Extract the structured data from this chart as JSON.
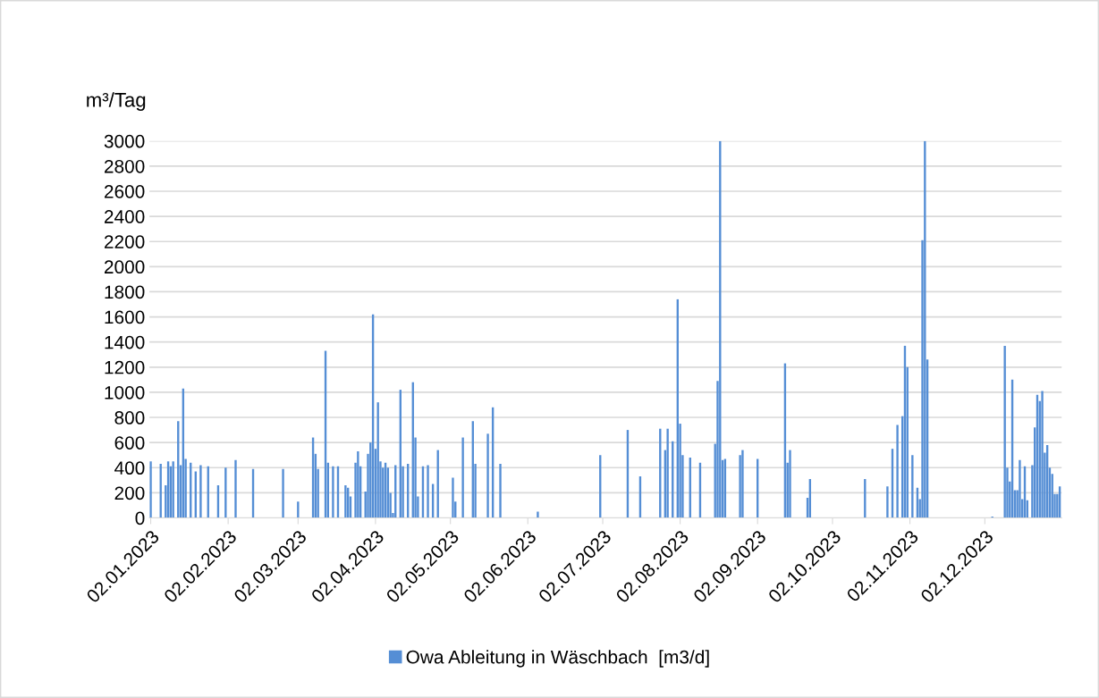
{
  "chart_data": {
    "type": "bar",
    "ylabel": "m³/Tag",
    "x": [
      "2023-01-02",
      "2023-01-06",
      "2023-01-08",
      "2023-01-09",
      "2023-01-10",
      "2023-01-11",
      "2023-01-13",
      "2023-01-14",
      "2023-01-15",
      "2023-01-16",
      "2023-01-18",
      "2023-01-20",
      "2023-01-22",
      "2023-01-25",
      "2023-01-29",
      "2023-02-01",
      "2023-02-05",
      "2023-02-12",
      "2023-02-24",
      "2023-03-02",
      "2023-03-08",
      "2023-03-09",
      "2023-03-10",
      "2023-03-13",
      "2023-03-14",
      "2023-03-16",
      "2023-03-18",
      "2023-03-21",
      "2023-03-22",
      "2023-03-23",
      "2023-03-25",
      "2023-03-26",
      "2023-03-27",
      "2023-03-29",
      "2023-03-30",
      "2023-03-31",
      "2023-04-01",
      "2023-04-02",
      "2023-04-03",
      "2023-04-04",
      "2023-04-05",
      "2023-04-06",
      "2023-04-07",
      "2023-04-08",
      "2023-04-09",
      "2023-04-10",
      "2023-04-12",
      "2023-04-13",
      "2023-04-15",
      "2023-04-17",
      "2023-04-18",
      "2023-04-19",
      "2023-04-21",
      "2023-04-23",
      "2023-04-25",
      "2023-04-27",
      "2023-05-03",
      "2023-05-04",
      "2023-05-07",
      "2023-05-11",
      "2023-05-12",
      "2023-05-17",
      "2023-05-19",
      "2023-05-22",
      "2023-06-06",
      "2023-07-01",
      "2023-07-12",
      "2023-07-17",
      "2023-07-25",
      "2023-07-27",
      "2023-07-28",
      "2023-07-30",
      "2023-08-01",
      "2023-08-02",
      "2023-08-03",
      "2023-08-06",
      "2023-08-10",
      "2023-08-16",
      "2023-08-17",
      "2023-08-18",
      "2023-08-19",
      "2023-08-20",
      "2023-08-26",
      "2023-08-27",
      "2023-09-02",
      "2023-09-13",
      "2023-09-14",
      "2023-09-15",
      "2023-09-22",
      "2023-09-23",
      "2023-10-15",
      "2023-10-24",
      "2023-10-26",
      "2023-10-28",
      "2023-10-30",
      "2023-10-31",
      "2023-11-01",
      "2023-11-03",
      "2023-11-05",
      "2023-11-06",
      "2023-11-07",
      "2023-11-08",
      "2023-11-09",
      "2023-12-05",
      "2023-12-10",
      "2023-12-11",
      "2023-12-12",
      "2023-12-13",
      "2023-12-14",
      "2023-12-15",
      "2023-12-16",
      "2023-12-17",
      "2023-12-18",
      "2023-12-19",
      "2023-12-21",
      "2023-12-22",
      "2023-12-23",
      "2023-12-24",
      "2023-12-25",
      "2023-12-26",
      "2023-12-27",
      "2023-12-28",
      "2023-12-29",
      "2023-12-30",
      "2023-12-31",
      "2024-01-01"
    ],
    "series": [
      {
        "name": "Owa Ableitung in Wäschbach  [m3/d]",
        "color": "#558ed5",
        "values": [
          450,
          430,
          260,
          450,
          410,
          450,
          770,
          420,
          1030,
          470,
          440,
          370,
          420,
          410,
          260,
          400,
          460,
          390,
          390,
          130,
          640,
          510,
          390,
          1330,
          440,
          410,
          410,
          260,
          240,
          170,
          440,
          530,
          410,
          210,
          510,
          600,
          1620,
          550,
          920,
          450,
          400,
          440,
          400,
          200,
          40,
          420,
          1020,
          410,
          430,
          1080,
          640,
          170,
          410,
          420,
          270,
          540,
          320,
          130,
          640,
          770,
          430,
          670,
          880,
          430,
          50,
          500,
          700,
          330,
          710,
          540,
          710,
          610,
          1740,
          750,
          500,
          480,
          440,
          590,
          1090,
          3000,
          460,
          470,
          500,
          540,
          470,
          1230,
          440,
          540,
          160,
          310,
          310,
          250,
          550,
          740,
          810,
          1370,
          1200,
          500,
          240,
          150,
          2210,
          3000,
          1260,
          10,
          1370,
          400,
          290,
          1100,
          220,
          220,
          460,
          150,
          410,
          140,
          420,
          720,
          980,
          930,
          1010,
          520,
          580,
          400,
          350,
          190,
          190,
          250
        ]
      }
    ],
    "xlim": [
      "2023-01-01T12:00",
      "2024-01-01T18:00"
    ],
    "xticks": [
      {
        "value": "2023-01-02",
        "label": "02.01.2023"
      },
      {
        "value": "2023-02-02",
        "label": "02.02.2023"
      },
      {
        "value": "2023-03-02",
        "label": "02.03.2023"
      },
      {
        "value": "2023-04-02",
        "label": "02.04.2023"
      },
      {
        "value": "2023-05-02",
        "label": "02.05.2023"
      },
      {
        "value": "2023-06-02",
        "label": "02.06.2023"
      },
      {
        "value": "2023-07-02",
        "label": "02.07.2023"
      },
      {
        "value": "2023-08-02",
        "label": "02.08.2023"
      },
      {
        "value": "2023-09-02",
        "label": "02.09.2023"
      },
      {
        "value": "2023-10-02",
        "label": "02.10.2023"
      },
      {
        "value": "2023-11-02",
        "label": "02.11.2023"
      },
      {
        "value": "2023-12-02",
        "label": "02.12.2023"
      }
    ],
    "ylim": [
      0,
      3000
    ],
    "yticks": [
      0,
      200,
      400,
      600,
      800,
      1000,
      1200,
      1400,
      1600,
      1800,
      2000,
      2200,
      2400,
      2600,
      2800,
      3000
    ],
    "grid": "y",
    "legend": "bottom"
  }
}
